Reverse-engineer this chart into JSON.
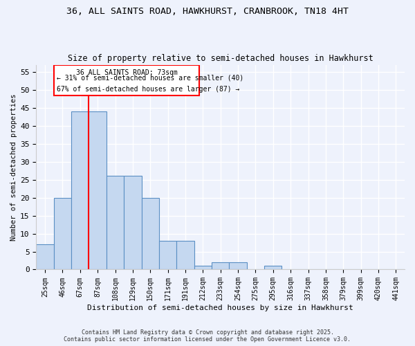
{
  "title1": "36, ALL SAINTS ROAD, HAWKHURST, CRANBROOK, TN18 4HT",
  "title2": "Size of property relative to semi-detached houses in Hawkhurst",
  "xlabel": "Distribution of semi-detached houses by size in Hawkhurst",
  "ylabel": "Number of semi-detached properties",
  "categories": [
    "25sqm",
    "46sqm",
    "67sqm",
    "87sqm",
    "108sqm",
    "129sqm",
    "150sqm",
    "171sqm",
    "191sqm",
    "212sqm",
    "233sqm",
    "254sqm",
    "275sqm",
    "295sqm",
    "316sqm",
    "337sqm",
    "358sqm",
    "379sqm",
    "399sqm",
    "420sqm",
    "441sqm"
  ],
  "values": [
    7,
    20,
    44,
    44,
    26,
    26,
    20,
    8,
    8,
    1,
    2,
    2,
    0,
    1,
    0,
    0,
    0,
    0,
    0,
    0,
    0
  ],
  "bar_color": "#c5d8f0",
  "bar_edge_color": "#5a8fc4",
  "redline_x": 2.5,
  "annotation_title": "36 ALL SAINTS ROAD: 73sqm",
  "annotation_line1": "← 31% of semi-detached houses are smaller (40)",
  "annotation_line2": "67% of semi-detached houses are larger (87) →",
  "ylim": [
    0,
    57
  ],
  "yticks": [
    0,
    5,
    10,
    15,
    20,
    25,
    30,
    35,
    40,
    45,
    50,
    55
  ],
  "footer1": "Contains HM Land Registry data © Crown copyright and database right 2025.",
  "footer2": "Contains public sector information licensed under the Open Government Licence v3.0.",
  "bg_color": "#eef2fc",
  "grid_color": "#ffffff"
}
